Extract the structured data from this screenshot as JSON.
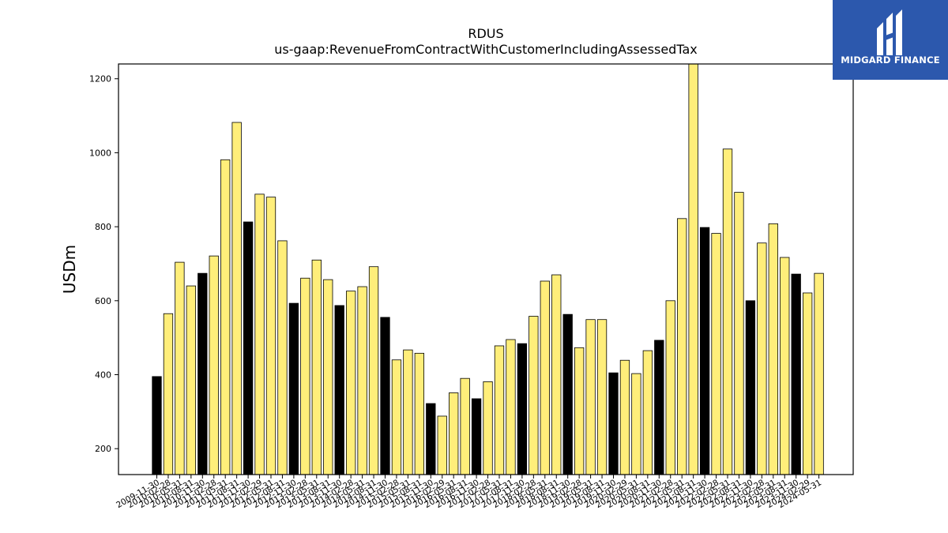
{
  "colors": {
    "highlight": "#000000",
    "base": "#ffee7a",
    "edge": "#000000",
    "logo_bg": "#2c58ad"
  },
  "logo": {
    "text": "MIDGARD FINANCE",
    "icon": "midgard-logo-icon"
  },
  "chart_data": {
    "type": "bar",
    "title": "RDUS",
    "subtitle": "us-gaap:RevenueFromContractWithCustomerIncludingAssessedTax",
    "xlabel": "",
    "ylabel": "USDm",
    "ylim": [
      130,
      1240
    ],
    "yticks": [
      200,
      400,
      600,
      800,
      1000,
      1200
    ],
    "grid": false,
    "categories": [
      "2009-11-30",
      "2010-02-28",
      "2010-05-31",
      "2010-08-31",
      "2010-11-30",
      "2011-02-28",
      "2011-05-31",
      "2011-08-31",
      "2011-11-30",
      "2012-02-29",
      "2012-05-31",
      "2012-08-31",
      "2012-11-30",
      "2013-02-28",
      "2013-05-31",
      "2013-08-31",
      "2013-11-30",
      "2014-02-28",
      "2014-05-31",
      "2014-08-31",
      "2014-11-30",
      "2015-02-28",
      "2015-05-31",
      "2015-08-31",
      "2015-11-30",
      "2016-02-29",
      "2016-05-31",
      "2016-08-31",
      "2016-11-30",
      "2017-02-28",
      "2017-05-31",
      "2017-08-31",
      "2017-11-30",
      "2018-02-28",
      "2018-05-31",
      "2018-08-31",
      "2018-11-30",
      "2019-02-28",
      "2019-05-31",
      "2019-08-31",
      "2019-11-30",
      "2020-02-29",
      "2020-05-31",
      "2020-08-31",
      "2020-11-30",
      "2021-02-28",
      "2021-05-31",
      "2021-08-31",
      "2021-11-30",
      "2022-02-28",
      "2022-05-31",
      "2022-08-31",
      "2022-11-30",
      "2023-02-28",
      "2023-05-31",
      "2023-08-31",
      "2023-11-30",
      "2024-02-29",
      "2024-05-31"
    ],
    "values": [
      395,
      565,
      704,
      640,
      674,
      721,
      981,
      1082,
      813,
      888,
      880,
      762,
      593,
      661,
      710,
      657,
      587,
      626,
      638,
      692,
      555,
      440,
      467,
      458,
      322,
      288,
      351,
      390,
      335,
      381,
      478,
      495,
      484,
      558,
      653,
      670,
      563,
      473,
      549,
      549,
      405,
      439,
      403,
      465,
      493,
      600,
      822,
      1240,
      798,
      782,
      1010,
      893,
      600,
      756,
      808,
      717,
      672,
      621,
      674
    ],
    "highlight_indices": [
      0,
      4,
      8,
      12,
      16,
      20,
      24,
      28,
      32,
      36,
      40,
      44,
      48,
      52,
      56
    ]
  }
}
